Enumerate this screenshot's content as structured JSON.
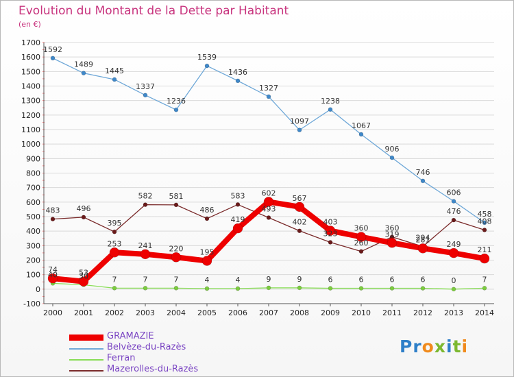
{
  "header": {
    "title": "Evolution du Montant de la Dette par Habitant",
    "subtitle": "(en €)"
  },
  "logo": {
    "text": "Proxiti",
    "colors": [
      "#2e7fc8",
      "#2e7fc8",
      "#f08a1c",
      "#7cb82f",
      "#2e7fc8",
      "#7cb82f",
      "#f08a1c"
    ]
  },
  "chart_data": {
    "type": "line",
    "x": [
      "2000",
      "2001",
      "2002",
      "2003",
      "2004",
      "2005",
      "2006",
      "2007",
      "2008",
      "2009",
      "2010",
      "2011",
      "2012",
      "2013",
      "2014"
    ],
    "ylim": [
      -100,
      1700
    ],
    "yticks": [
      -100,
      0,
      100,
      200,
      300,
      400,
      500,
      600,
      700,
      800,
      900,
      1000,
      1100,
      1200,
      1300,
      1400,
      1500,
      1600,
      1700
    ],
    "grid": "horizontal",
    "legend_position": "bottom-left",
    "series": [
      {
        "name": "Belvèze-du-Razès",
        "color": "#6fa8d8",
        "marker": "#3f88c9",
        "width": 1.3,
        "r": 3,
        "values": [
          1592,
          1489,
          1445,
          1337,
          1236,
          1539,
          1436,
          1327,
          1097,
          1238,
          1067,
          906,
          746,
          606,
          458
        ]
      },
      {
        "name": "Ferran",
        "color": "#88dd55",
        "marker": "#7ccc3f",
        "width": 1.3,
        "r": 3,
        "values": [
          40,
          30,
          7,
          7,
          7,
          4,
          4,
          9,
          9,
          6,
          6,
          6,
          6,
          0,
          7
        ]
      },
      {
        "name": "Mazerolles-du-Razès",
        "color": "#7a2a2a",
        "marker": "#6a1a1a",
        "width": 1.3,
        "r": 3,
        "values": [
          483,
          496,
          395,
          582,
          581,
          486,
          583,
          493,
          402,
          323,
          260,
          360,
          294,
          476,
          408
        ]
      },
      {
        "name": "GRAMAZIE",
        "color": "#ee0000",
        "marker": "#ee0000",
        "width": 8,
        "r": 7,
        "values": [
          74,
          53,
          253,
          241,
          220,
          195,
          419,
          602,
          567,
          403,
          360,
          319,
          281,
          249,
          211
        ]
      }
    ],
    "legend_order": [
      "GRAMAZIE",
      "Belvèze-du-Razès",
      "Ferran",
      "Mazerolles-du-Razès"
    ]
  }
}
